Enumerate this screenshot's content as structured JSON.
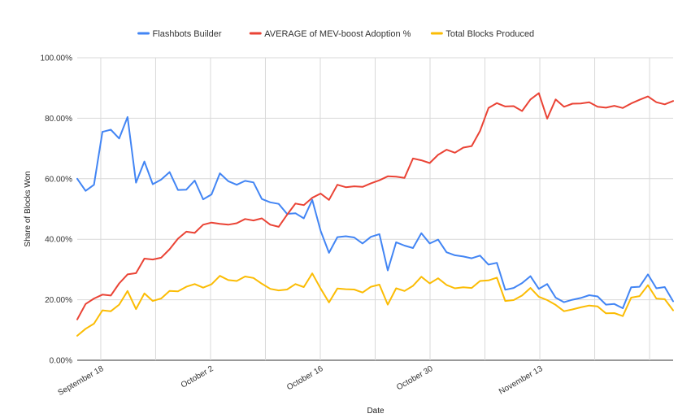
{
  "chart_data": {
    "type": "line",
    "title": "",
    "xlabel": "Date",
    "ylabel": "Share of Blocks Won",
    "ylim": [
      0,
      1
    ],
    "yticks": [
      {
        "value": 0,
        "label": "0.00%"
      },
      {
        "value": 0.2,
        "label": "20.00%"
      },
      {
        "value": 0.4,
        "label": "40.00%"
      },
      {
        "value": 0.6,
        "label": "60.00%"
      },
      {
        "value": 0.8,
        "label": "80.00%"
      },
      {
        "value": 1,
        "label": "100.00%"
      }
    ],
    "x_date_range": [
      "2022-09-15",
      "2022-11-30"
    ],
    "xticks": [
      {
        "date": "2022-09-18",
        "label": "September 18"
      },
      {
        "date": "2022-10-02",
        "label": "October 2"
      },
      {
        "date": "2022-10-16",
        "label": "October 16"
      },
      {
        "date": "2022-10-30",
        "label": "October 30"
      },
      {
        "date": "2022-11-13",
        "label": "November 13"
      }
    ],
    "grid_dates": [
      "2022-09-18",
      "2022-09-25",
      "2022-10-02",
      "2022-10-09",
      "2022-10-16",
      "2022-10-23",
      "2022-10-30",
      "2022-11-06",
      "2022-11-13",
      "2022-11-20",
      "2022-11-27"
    ],
    "legend_position": "top",
    "grid": true,
    "series": [
      {
        "name": "Flashbots Builder",
        "color": "#4285f4",
        "values": [
          0.6,
          0.56,
          0.58,
          0.755,
          0.762,
          0.733,
          0.804,
          0.587,
          0.657,
          0.582,
          0.597,
          0.622,
          0.563,
          0.564,
          0.594,
          0.532,
          0.548,
          0.618,
          0.592,
          0.58,
          0.593,
          0.588,
          0.533,
          0.522,
          0.517,
          0.484,
          0.486,
          0.469,
          0.53,
          0.428,
          0.355,
          0.407,
          0.41,
          0.406,
          0.386,
          0.408,
          0.417,
          0.297,
          0.39,
          0.379,
          0.371,
          0.42,
          0.386,
          0.399,
          0.357,
          0.347,
          0.343,
          0.337,
          0.346,
          0.316,
          0.322,
          0.233,
          0.239,
          0.255,
          0.278,
          0.236,
          0.252,
          0.207,
          0.192,
          0.2,
          0.206,
          0.215,
          0.211,
          0.184,
          0.186,
          0.172,
          0.241,
          0.243,
          0.284,
          0.238,
          0.242,
          0.195
        ]
      },
      {
        "name": "AVERAGE of MEV-boost Adoption %",
        "color": "#ea4335",
        "values": [
          0.135,
          0.186,
          0.204,
          0.217,
          0.214,
          0.254,
          0.284,
          0.288,
          0.336,
          0.333,
          0.339,
          0.367,
          0.402,
          0.425,
          0.421,
          0.448,
          0.455,
          0.451,
          0.448,
          0.453,
          0.467,
          0.462,
          0.469,
          0.448,
          0.441,
          0.481,
          0.518,
          0.513,
          0.537,
          0.551,
          0.53,
          0.58,
          0.572,
          0.575,
          0.573,
          0.585,
          0.595,
          0.608,
          0.607,
          0.603,
          0.667,
          0.661,
          0.652,
          0.679,
          0.696,
          0.686,
          0.703,
          0.708,
          0.758,
          0.834,
          0.85,
          0.839,
          0.84,
          0.824,
          0.862,
          0.883,
          0.799,
          0.862,
          0.838,
          0.848,
          0.849,
          0.853,
          0.838,
          0.835,
          0.841,
          0.834,
          0.849,
          0.861,
          0.872,
          0.853,
          0.846,
          0.857
        ]
      },
      {
        "name": "Total Blocks Produced",
        "color": "#fbbc04",
        "values": [
          0.081,
          0.104,
          0.121,
          0.165,
          0.162,
          0.184,
          0.229,
          0.169,
          0.221,
          0.196,
          0.204,
          0.229,
          0.228,
          0.243,
          0.252,
          0.24,
          0.251,
          0.279,
          0.265,
          0.262,
          0.277,
          0.272,
          0.253,
          0.236,
          0.231,
          0.234,
          0.252,
          0.242,
          0.287,
          0.237,
          0.191,
          0.237,
          0.235,
          0.234,
          0.224,
          0.243,
          0.25,
          0.184,
          0.238,
          0.229,
          0.246,
          0.276,
          0.254,
          0.271,
          0.249,
          0.238,
          0.241,
          0.239,
          0.262,
          0.264,
          0.273,
          0.196,
          0.199,
          0.214,
          0.239,
          0.21,
          0.199,
          0.183,
          0.162,
          0.168,
          0.175,
          0.181,
          0.178,
          0.155,
          0.156,
          0.146,
          0.207,
          0.212,
          0.248,
          0.204,
          0.202,
          0.165
        ]
      }
    ]
  }
}
